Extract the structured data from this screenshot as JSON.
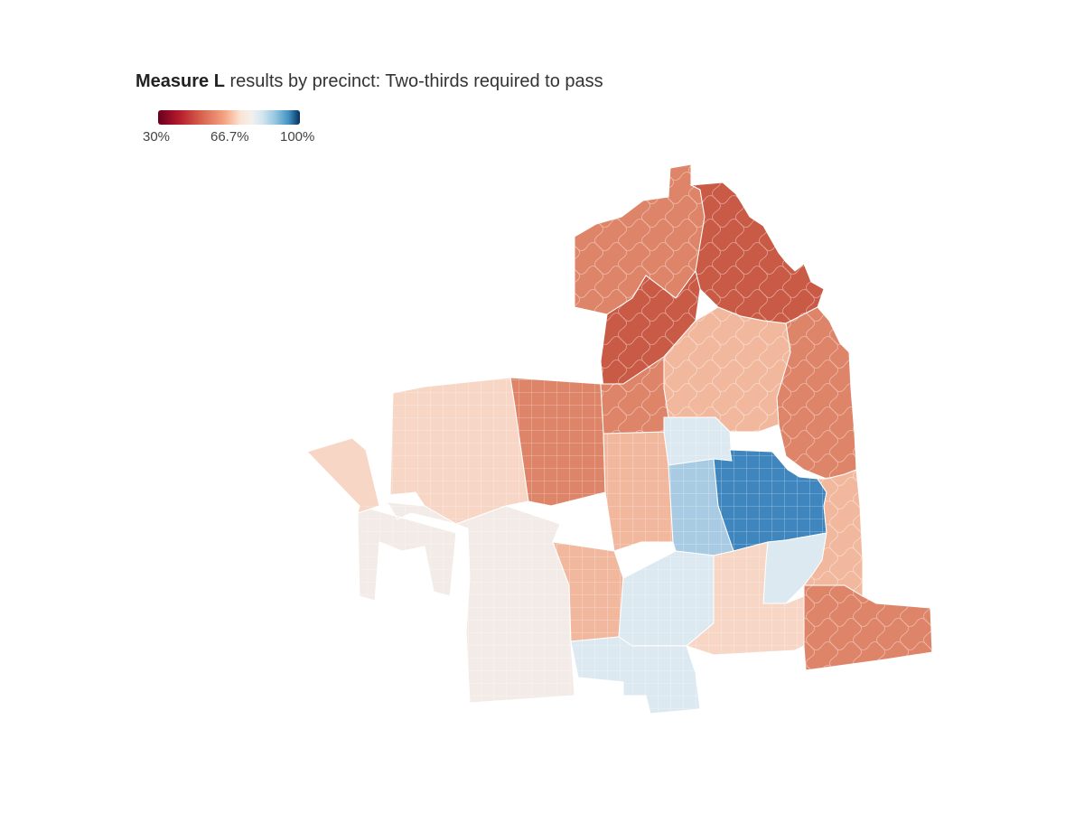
{
  "map": {
    "title_bold": "Measure L",
    "title_rest": " results by precinct: Two-thirds required to pass",
    "legend": {
      "min_label": "30%",
      "mid_label": "66.7%",
      "max_label": "100%"
    },
    "colors": {
      "dark_red": "#c95a45",
      "mid_red": "#de8468",
      "light_red": "#f1b89e",
      "pale_red": "#f7d6c6",
      "neutral": "#f3ebe7",
      "pale_blue": "#dce9f1",
      "light_blue": "#a8cbe3",
      "dark_blue": "#3f86be"
    }
  }
}
